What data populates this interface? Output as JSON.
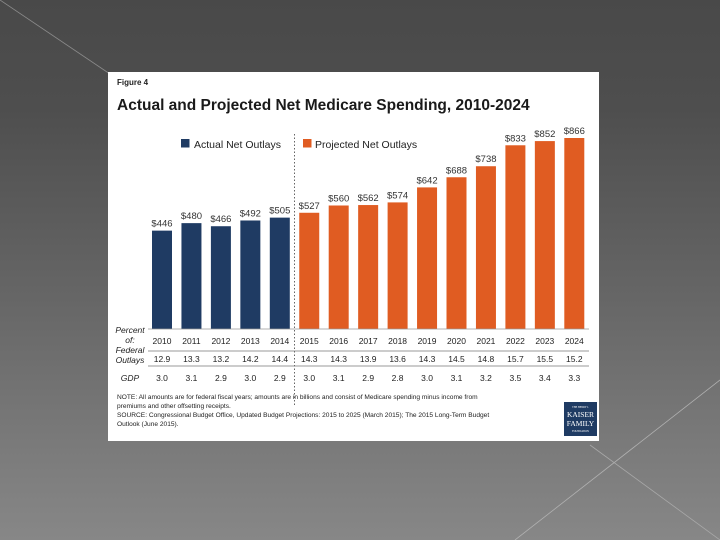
{
  "slide": {
    "background_top": "#494949",
    "background_bottom": "#878787"
  },
  "figure": {
    "label": "Figure 4",
    "logo": {
      "line1": "THE HENRY J.",
      "line2": "KAISER",
      "line3": "FAMILY",
      "line4": "FOUNDATION",
      "color": "#1f3b63"
    },
    "note_lines": [
      "NOTE: All amounts are for federal fiscal years; amounts are in billions and consist of Medicare spending minus income from",
      "premiums and other offsetting receipts.",
      "SOURCE: Congressional Budget Office, Updated Budget Projections: 2015 to 2025 (March 2015); The 2015 Long-Term Budget",
      "Outlook (June 2015)."
    ]
  },
  "chart_data": {
    "type": "bar",
    "title": "Actual and Projected Net Medicare Spending, 2010-2024",
    "xlabel": "",
    "ylabel": "",
    "ylim": [
      0,
      866
    ],
    "grid": false,
    "legend_position": "top-center",
    "categories": [
      "2010",
      "2011",
      "2012",
      "2013",
      "2014",
      "2015",
      "2016",
      "2017",
      "2018",
      "2019",
      "2020",
      "2021",
      "2022",
      "2023",
      "2024"
    ],
    "series": [
      {
        "name": "Actual Net Outlays",
        "color": "#1f3b63",
        "values": [
          446,
          480,
          466,
          492,
          505,
          null,
          null,
          null,
          null,
          null,
          null,
          null,
          null,
          null,
          null
        ]
      },
      {
        "name": "Projected Net Outlays",
        "color": "#e05c22",
        "values": [
          null,
          null,
          null,
          null,
          null,
          527,
          560,
          562,
          574,
          642,
          688,
          738,
          833,
          852,
          866
        ]
      }
    ],
    "value_labels": [
      "$446",
      "$480",
      "$466",
      "$492",
      "$505",
      "$527",
      "$560",
      "$562",
      "$574",
      "$642",
      "$688",
      "$738",
      "$833",
      "$852",
      "$866"
    ],
    "divider_after_category": "2014",
    "table": {
      "header_label_lines": [
        "Percent",
        "of:"
      ],
      "rows": [
        {
          "label_lines": [
            "Federal",
            "Outlays"
          ],
          "values": [
            "12.9",
            "13.3",
            "13.2",
            "14.2",
            "14.4",
            "14.3",
            "14.3",
            "13.9",
            "13.6",
            "14.3",
            "14.5",
            "14.8",
            "15.7",
            "15.5",
            "15.2"
          ]
        },
        {
          "label_lines": [
            "GDP"
          ],
          "values": [
            "3.0",
            "3.1",
            "2.9",
            "3.0",
            "2.9",
            "3.0",
            "3.1",
            "2.9",
            "2.8",
            "3.0",
            "3.1",
            "3.2",
            "3.5",
            "3.4",
            "3.3"
          ]
        }
      ]
    }
  }
}
